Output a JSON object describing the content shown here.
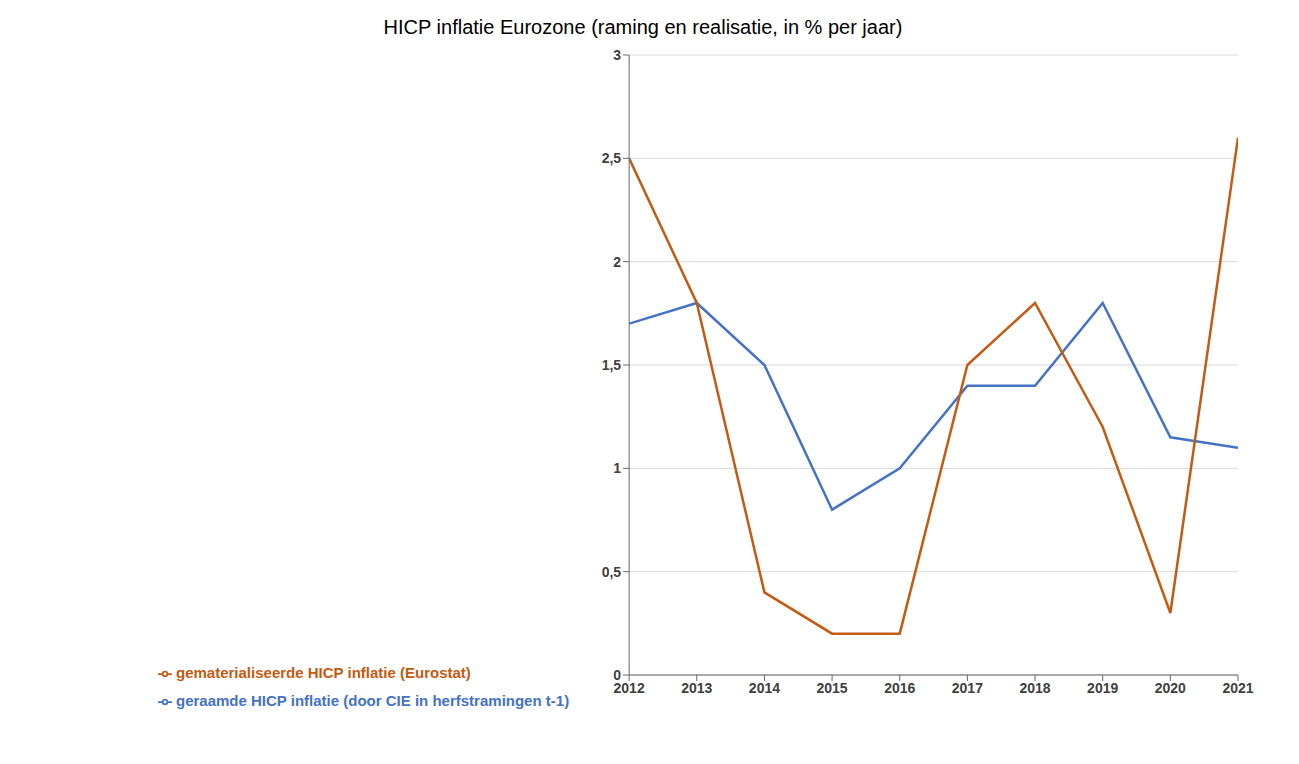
{
  "chart_data": {
    "type": "line",
    "title": "HICP inflatie Eurozone (raming en realisatie, in % per jaar)",
    "x": [
      2012,
      2013,
      2014,
      2015,
      2016,
      2017,
      2018,
      2019,
      2020,
      2021
    ],
    "series": [
      {
        "name": "geraamde HICP inflatie (door CIE in herfstramingen t-1)",
        "color": "#4472C4",
        "values": [
          1.7,
          1.8,
          1.5,
          0.8,
          1.0,
          1.4,
          1.4,
          1.8,
          1.15,
          1.1
        ]
      },
      {
        "name": "gematerialiseerde HICP inflatie (Eurostat)",
        "color": "#C55A11",
        "values": [
          2.5,
          1.8,
          0.4,
          0.2,
          0.2,
          1.5,
          1.8,
          1.2,
          0.3,
          2.6
        ]
      }
    ],
    "xlim": [
      2012,
      2021
    ],
    "xticks": [
      2012,
      2013,
      2014,
      2015,
      2016,
      2017,
      2018,
      2019,
      2020,
      2021
    ],
    "ylim": [
      0,
      3
    ],
    "yticks": [
      0,
      {
        "value": 0.5,
        "label": "0,5"
      },
      1,
      {
        "value": 1.5,
        "label": "1,5"
      },
      2,
      {
        "value": 2.5,
        "label": "2,5"
      },
      3
    ],
    "grid": true,
    "legend": "bottom"
  }
}
